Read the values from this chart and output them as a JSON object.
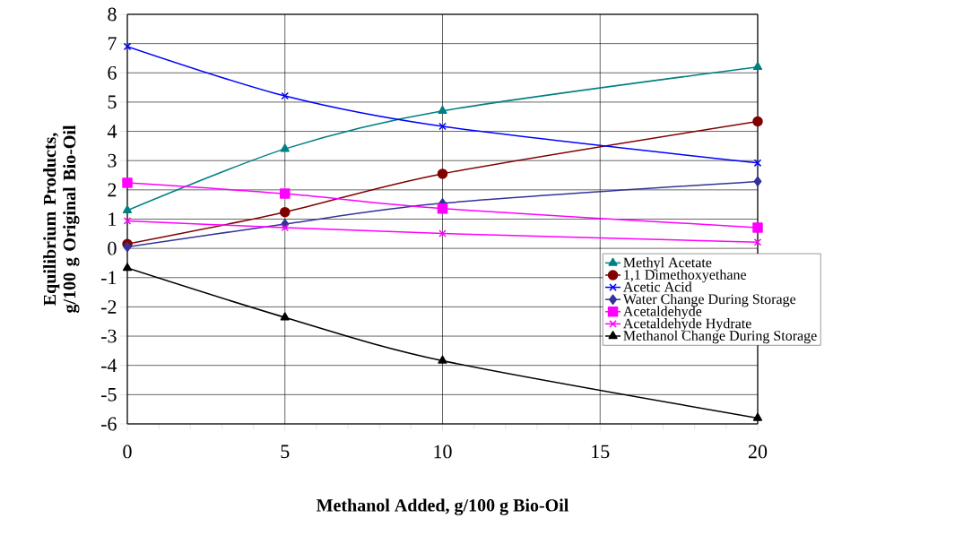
{
  "chart_data": {
    "type": "line",
    "xlabel": "Methanol Added, g/100 g Bio-Oil",
    "ylabel": "Equilibrium Products, g/100 g Original Bio-Oil",
    "x": [
      0,
      5,
      10,
      20
    ],
    "series": [
      {
        "name": "Methyl Acetate",
        "color": "#008080",
        "marker": "triangle",
        "values": [
          1.3,
          3.4,
          4.7,
          6.2
        ]
      },
      {
        "name": "1,1 Dimethoxyethane",
        "color": "#800000",
        "marker": "circle",
        "values": [
          0.15,
          1.24,
          2.55,
          4.34
        ]
      },
      {
        "name": "Acetic Acid",
        "color": "#0000ff",
        "marker": "cross",
        "values": [
          6.9,
          5.21,
          4.17,
          2.92
        ]
      },
      {
        "name": "Water Change During Storage",
        "color": "#333399",
        "marker": "diamond",
        "values": [
          0.05,
          0.83,
          1.54,
          2.29
        ]
      },
      {
        "name": "Acetaldehyde",
        "color": "#ff00ff",
        "marker": "square",
        "values": [
          2.24,
          1.87,
          1.36,
          0.71
        ]
      },
      {
        "name": "Acetaldehyde Hydrate",
        "color": "#ff00ff",
        "marker": "cross",
        "values": [
          0.94,
          0.71,
          0.51,
          0.21
        ]
      },
      {
        "name": "Methanol Change During Storage",
        "color": "#000000",
        "marker": "triangle",
        "values": [
          -0.67,
          -2.36,
          -3.84,
          -5.8
        ]
      }
    ],
    "xlim": [
      0,
      20
    ],
    "xticks": [
      0,
      5,
      10,
      15,
      20
    ],
    "ylim": [
      -6,
      8
    ],
    "yticks": [
      -6,
      -5,
      -4,
      -3,
      -2,
      -1,
      0,
      1,
      2,
      3,
      4,
      5,
      6,
      7,
      8
    ],
    "grid": true,
    "legend": "bottom right",
    "line_style": "solid"
  }
}
